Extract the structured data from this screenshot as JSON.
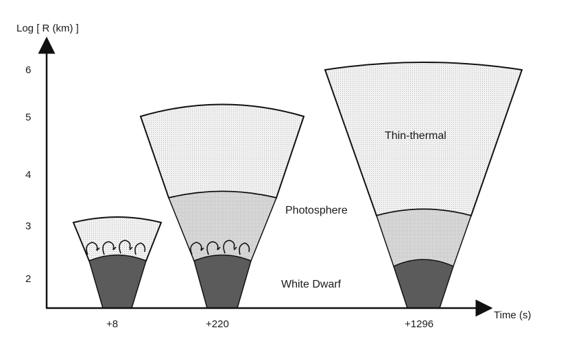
{
  "axes": {
    "y_title": "Log [ R (km) ]",
    "x_title": "Time (s)",
    "y_ticks": [
      "6",
      "5",
      "4",
      "3",
      "2"
    ],
    "x_ticks": [
      "+8",
      "+220",
      "+1296"
    ]
  },
  "region_labels": {
    "thin_thermal": "Thin-thermal",
    "photosphere": "Photosphere",
    "white_dwarf": "White Dwarf"
  },
  "colors": {
    "outer_layer": "#ececec",
    "middle_layer": "#d9d9d9",
    "white_dwarf": "#5b5b5b",
    "outline": "#111111"
  }
}
